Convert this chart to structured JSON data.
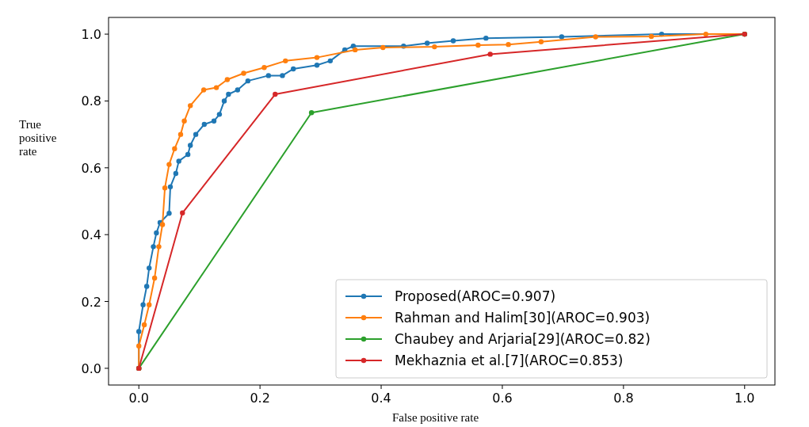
{
  "chart_data": {
    "type": "line",
    "xlabel": "False positive rate",
    "ylabel": "True positive rate",
    "xlim": [
      -0.05,
      1.05
    ],
    "ylim": [
      -0.05,
      1.05
    ],
    "xticks": [
      {
        "value": 0,
        "label": "0.0"
      },
      {
        "value": 0.2,
        "label": "0.2"
      },
      {
        "value": 0.4,
        "label": "0.4"
      },
      {
        "value": 0.6,
        "label": "0.6"
      },
      {
        "value": 0.8,
        "label": "0.8"
      },
      {
        "value": 1,
        "label": "1.0"
      }
    ],
    "yticks": [
      {
        "value": 0,
        "label": "0.0"
      },
      {
        "value": 0.2,
        "label": "0.2"
      },
      {
        "value": 0.4,
        "label": "0.4"
      },
      {
        "value": 0.6,
        "label": "0.6"
      },
      {
        "value": 0.8,
        "label": "0.8"
      },
      {
        "value": 1,
        "label": "1.0"
      }
    ],
    "grid": false,
    "legend": "bottom right",
    "marker": "circle",
    "line_style": "solid",
    "series": [
      {
        "name": "Proposed(AROC=0.907)",
        "color": "#1f77b4",
        "x": [
          0,
          0,
          0.007,
          0.013,
          0.017,
          0.024,
          0.029,
          0.035,
          0.05,
          0.052,
          0.061,
          0.066,
          0.081,
          0.085,
          0.094,
          0.108,
          0.124,
          0.133,
          0.141,
          0.148,
          0.163,
          0.18,
          0.214,
          0.237,
          0.255,
          0.294,
          0.316,
          0.34,
          0.354,
          0.437,
          0.476,
          0.519,
          0.573,
          0.698,
          0.863,
          1
        ],
        "values": [
          0,
          0.11,
          0.19,
          0.245,
          0.3,
          0.364,
          0.405,
          0.436,
          0.464,
          0.543,
          0.583,
          0.62,
          0.64,
          0.667,
          0.7,
          0.73,
          0.74,
          0.76,
          0.8,
          0.82,
          0.833,
          0.86,
          0.876,
          0.876,
          0.896,
          0.907,
          0.92,
          0.953,
          0.964,
          0.964,
          0.973,
          0.98,
          0.988,
          0.992,
          1,
          1
        ]
      },
      {
        "name": "Rahman and Halim[30](AROC=0.903)",
        "color": "#ff7f0e",
        "x": [
          0,
          0,
          0.009,
          0.017,
          0.026,
          0.033,
          0.039,
          0.043,
          0.05,
          0.059,
          0.069,
          0.075,
          0.085,
          0.107,
          0.128,
          0.146,
          0.173,
          0.207,
          0.242,
          0.294,
          0.357,
          0.403,
          0.488,
          0.56,
          0.61,
          0.664,
          0.754,
          0.846,
          0.936,
          1
        ],
        "values": [
          0,
          0.067,
          0.13,
          0.19,
          0.27,
          0.364,
          0.43,
          0.54,
          0.61,
          0.657,
          0.7,
          0.74,
          0.786,
          0.833,
          0.84,
          0.864,
          0.883,
          0.9,
          0.92,
          0.93,
          0.953,
          0.96,
          0.962,
          0.967,
          0.969,
          0.977,
          0.992,
          0.993,
          1,
          1
        ]
      },
      {
        "name": "Chaubey and Arjaria[29](AROC=0.82)",
        "color": "#2ca02c",
        "x": [
          0,
          0.285,
          1
        ],
        "values": [
          0,
          0.765,
          1
        ]
      },
      {
        "name": "Mekhaznia et al.[7](AROC=0.853)",
        "color": "#d62728",
        "x": [
          0,
          0.072,
          0.225,
          0.58,
          1
        ],
        "values": [
          0,
          0.465,
          0.82,
          0.94,
          1
        ]
      }
    ]
  }
}
